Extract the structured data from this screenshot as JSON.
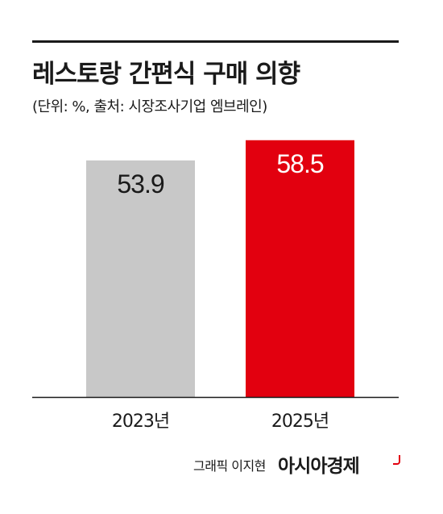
{
  "header": {
    "title": "레스토랑 간편식 구매 의향",
    "subtitle": "(단위: %, 출처: 시장조사기업 엠브레인)"
  },
  "footer": {
    "credit": "그래픽 이지현",
    "brand": "아시아경제"
  },
  "colors": {
    "bar_2023": "#c8c8c8",
    "bar_2025": "#e2000f",
    "label_on_gray": "#1a1a1a",
    "label_on_red": "#ffffff",
    "accent": "#e2000f"
  },
  "chart_data": {
    "type": "bar",
    "title": "레스토랑 간편식 구매 의향",
    "subtitle": "(단위: %, 출처: 시장조사기업 엠브레인)",
    "categories": [
      "2023년",
      "2025년"
    ],
    "values": [
      53.9,
      58.5
    ],
    "value_labels": [
      "53.9",
      "58.5"
    ],
    "xlabel": "",
    "ylabel": "",
    "grid": false,
    "legend": "none"
  }
}
